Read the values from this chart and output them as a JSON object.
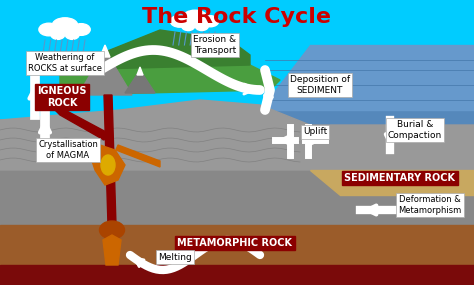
{
  "title": "The Rock Cycle",
  "title_color": "#cc0000",
  "title_fontsize": 16,
  "sky_color": "#00ccff",
  "ocean_color_top": "#5599cc",
  "ocean_color_mid": "#4477aa",
  "gray_ground": "#888888",
  "gray_ground2": "#999999",
  "brown_bottom": "#9b5c2a",
  "dark_red_bottom": "#7a0a0a",
  "tan_sediment": "#c8a860",
  "green_land": "#4a9e3f",
  "green_land2": "#3a8030",
  "volcano_gray": "#777777",
  "lava_dark": "#8B0000",
  "lava_orange": "#cc6600",
  "lava_yellow": "#dd9900",
  "rock_box_color": "#8B0000",
  "white": "#ffffff",
  "labels": {
    "weathering": "Weathering of\nROCKS at surface",
    "erosion": "Erosion &\nTransport",
    "deposition": "Deposition of\nSEDIMENT",
    "burial": "Burial &\nCompaction",
    "sedimentary": "SEDIMENTARY ROCK",
    "deformation": "Deformation &\nMetamorphism",
    "metamorphic": "METAMORPHIC ROCK",
    "uplift": "Uplift",
    "crystallisation": "Crystallisation\nof MAGMA",
    "igneous": "IGNEOUS\nROCK",
    "melting": "Melting"
  }
}
